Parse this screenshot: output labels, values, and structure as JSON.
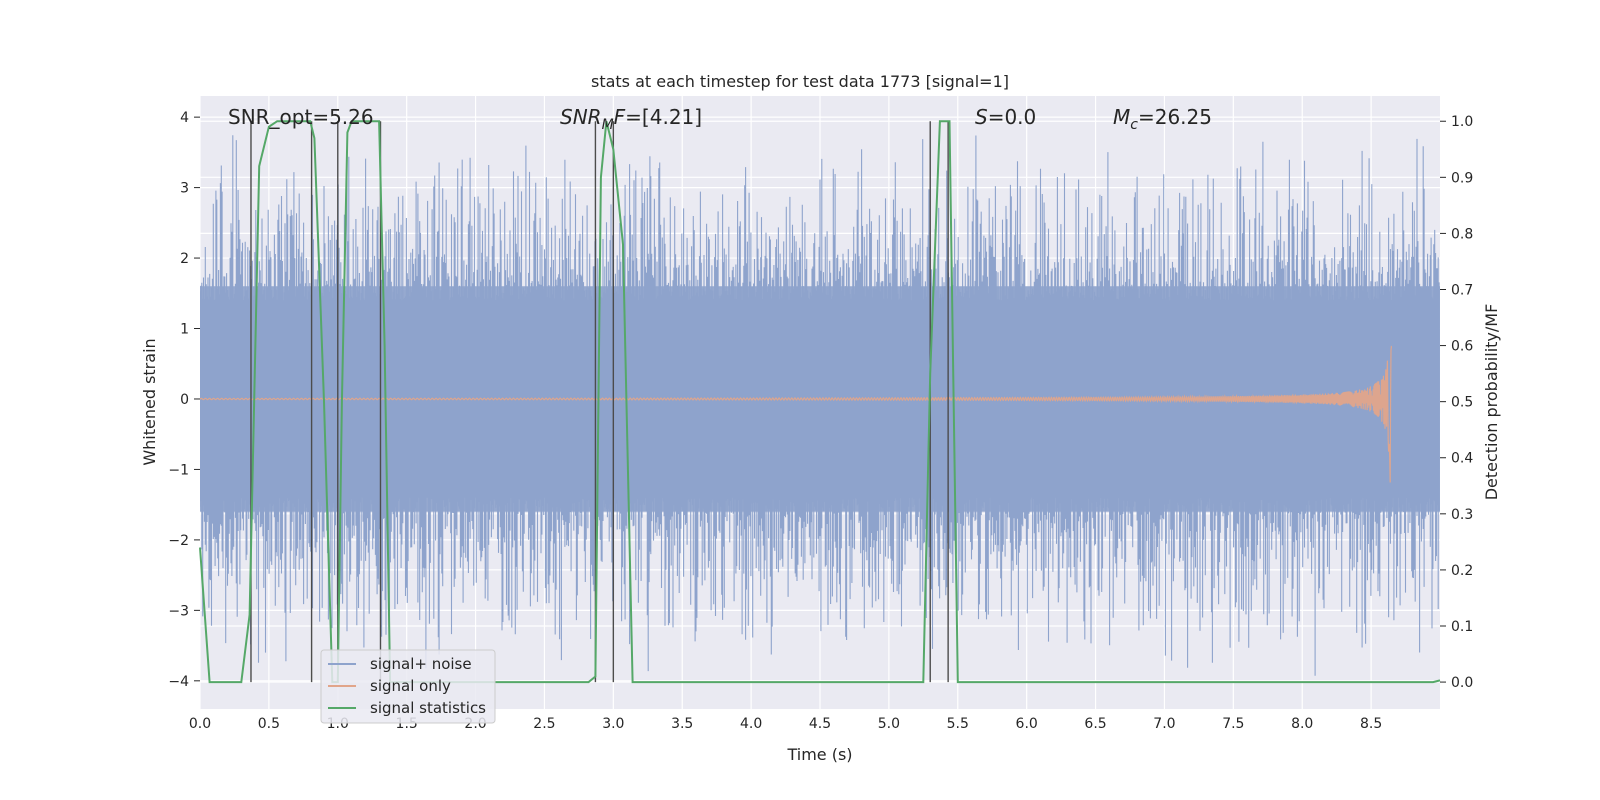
{
  "chart_data": {
    "type": "line",
    "title": "stats at each timestep for test data 1773 [signal=1]",
    "xlabel": "Time (s)",
    "ylabel": "Whitened strain",
    "y2label": "Detection probability/MF",
    "xlim": [
      0.0,
      9.0
    ],
    "ylim": [
      -4.4,
      4.3
    ],
    "y2lim": [
      -0.048,
      1.045
    ],
    "grid": true,
    "legend_position": "lower-left",
    "x_ticks": [
      "0.0",
      "0.5",
      "1.0",
      "1.5",
      "2.0",
      "2.5",
      "3.0",
      "3.5",
      "4.0",
      "4.5",
      "5.0",
      "5.5",
      "6.0",
      "6.5",
      "7.0",
      "7.5",
      "8.0",
      "8.5"
    ],
    "y_ticks": [
      "−4",
      "−3",
      "−2",
      "−1",
      "0",
      "1",
      "2",
      "3",
      "4"
    ],
    "y2_ticks": [
      "0.0",
      "0.1",
      "0.2",
      "0.3",
      "0.4",
      "0.5",
      "0.6",
      "0.7",
      "0.8",
      "0.9",
      "1.0"
    ],
    "annotations": {
      "snr_opt": "SNR_opt=5.26",
      "snr_mf": "=[4.21]",
      "snr_mf_main": "SNR",
      "snr_mf_sub": "M",
      "snr_mf_f": "F",
      "s_stat": "=0.0",
      "s_symbol": "S",
      "mc": "=26.25",
      "mc_symbol": "M",
      "mc_sub": "c"
    },
    "series": [
      {
        "name": "signal+ noise",
        "color": "#8ea3cc",
        "kind": "noise",
        "core_amplitude": 1.6,
        "peak_amplitude": 3.6
      },
      {
        "name": "signal only",
        "color": "#e1a58a",
        "kind": "chirp",
        "merger_time": 8.65,
        "peak_amplitude": 1.2
      },
      {
        "name": "signal statistics",
        "color": "#55a868",
        "kind": "probability",
        "points": [
          [
            0.0,
            0.24
          ],
          [
            0.07,
            0.0
          ],
          [
            0.3,
            0.0
          ],
          [
            0.36,
            0.12
          ],
          [
            0.43,
            0.92
          ],
          [
            0.5,
            0.99
          ],
          [
            0.56,
            1.0
          ],
          [
            0.8,
            1.0
          ],
          [
            0.83,
            0.97
          ],
          [
            0.9,
            0.5
          ],
          [
            0.96,
            0.0
          ],
          [
            1.0,
            0.0
          ],
          [
            1.03,
            0.5
          ],
          [
            1.07,
            0.98
          ],
          [
            1.1,
            1.0
          ],
          [
            1.3,
            1.0
          ],
          [
            1.34,
            0.6
          ],
          [
            1.38,
            0.0
          ],
          [
            2.82,
            0.0
          ],
          [
            2.87,
            0.01
          ],
          [
            2.91,
            0.9
          ],
          [
            2.95,
            1.0
          ],
          [
            3.0,
            0.95
          ],
          [
            3.07,
            0.78
          ],
          [
            3.14,
            0.0
          ],
          [
            3.22,
            0.0
          ],
          [
            5.25,
            0.0
          ],
          [
            5.3,
            0.55
          ],
          [
            5.37,
            1.0
          ],
          [
            5.44,
            1.0
          ],
          [
            5.5,
            0.0
          ],
          [
            5.52,
            0.0
          ],
          [
            8.95,
            0.0
          ],
          [
            9.0,
            0.003
          ]
        ]
      },
      {
        "name": "",
        "color": "#4c4c4c",
        "kind": "markers",
        "x": [
          0.37,
          0.81,
          1.0,
          1.31,
          2.87,
          3.0,
          5.3,
          5.43
        ]
      }
    ]
  }
}
